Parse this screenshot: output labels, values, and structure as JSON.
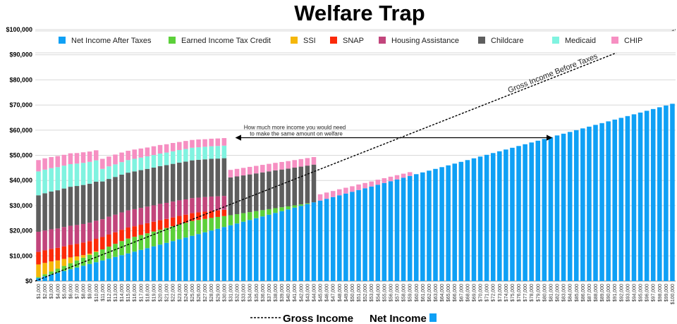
{
  "chart_data": {
    "type": "bar",
    "stacked": true,
    "title": "Welfare Trap",
    "xlabel": "",
    "ylabel": "",
    "ylim": [
      0,
      100000
    ],
    "yticks": [
      "$0",
      "$10,000",
      "$20,000",
      "$30,000",
      "$40,000",
      "$50,000",
      "$60,000",
      "$70,000",
      "$80,000",
      "$90,000",
      "$100,000"
    ],
    "ytick_values": [
      0,
      10000,
      20000,
      30000,
      40000,
      50000,
      60000,
      70000,
      80000,
      90000,
      100000
    ],
    "grid": true,
    "legend_placement": "top",
    "x_start": 1000,
    "x_step": 1000,
    "x_count": 100,
    "series": [
      {
        "name": "Net Income After Taxes",
        "color": "#0fa0f5",
        "values": [
          1200,
          1900,
          2600,
          3300,
          4000,
          4700,
          5400,
          6100,
          6800,
          7500,
          8200,
          8900,
          9600,
          10300,
          11000,
          11700,
          12400,
          13100,
          13800,
          14500,
          15200,
          15900,
          16600,
          17300,
          18000,
          18700,
          19400,
          20100,
          20800,
          21500,
          22200,
          22900,
          23600,
          24300,
          25000,
          25700,
          26400,
          27100,
          27800,
          28500,
          29200,
          29900,
          30600,
          31300,
          32000,
          32700,
          33400,
          34100,
          34800,
          35500,
          36200,
          36900,
          37600,
          38300,
          39000,
          39700,
          40400,
          41100,
          41800,
          42500,
          43200,
          43900,
          44600,
          45300,
          46000,
          46700,
          47400,
          48100,
          48800,
          49500,
          50200,
          50900,
          51600,
          52300,
          53000,
          53700,
          54400,
          55100,
          55800,
          56500,
          57200,
          57900,
          58600,
          59300,
          60000,
          60700,
          61400,
          62100,
          62800,
          63500,
          64200,
          64900,
          65600,
          66300,
          67000,
          67700,
          68400,
          69100,
          69800,
          70500
        ]
      },
      {
        "name": "Earned Income Tax Credit",
        "color": "#5cd03a",
        "values": [
          400,
          800,
          1200,
          1600,
          2000,
          2400,
          2800,
          3200,
          3600,
          4000,
          4400,
          4800,
          5200,
          5600,
          5900,
          5900,
          5900,
          5900,
          5900,
          5900,
          5900,
          5900,
          5900,
          5900,
          5900,
          5600,
          5300,
          5000,
          4700,
          4350,
          4000,
          3700,
          3400,
          3100,
          2800,
          2500,
          2200,
          1900,
          1550,
          1200,
          900,
          600,
          300,
          0,
          0,
          0,
          0,
          0,
          0,
          0,
          0,
          0,
          0,
          0,
          0,
          0,
          0,
          0,
          0,
          0,
          0,
          0,
          0,
          0,
          0,
          0,
          0,
          0,
          0,
          0,
          0,
          0,
          0,
          0,
          0,
          0,
          0,
          0,
          0,
          0,
          0,
          0,
          0,
          0,
          0,
          0,
          0,
          0,
          0,
          0,
          0,
          0,
          0,
          0,
          0,
          0,
          0,
          0,
          0,
          0
        ]
      },
      {
        "name": "SSI",
        "color": "#f5b70a",
        "values": [
          5000,
          4500,
          4000,
          3300,
          2800,
          2300,
          1600,
          1000,
          500,
          300,
          0,
          0,
          0,
          0,
          0,
          0,
          0,
          0,
          0,
          0,
          0,
          0,
          0,
          0,
          0,
          0,
          0,
          0,
          0,
          0,
          0,
          0,
          0,
          0,
          0,
          0,
          0,
          0,
          0,
          0,
          0,
          0,
          0,
          0,
          0,
          0,
          0,
          0,
          0,
          0,
          0,
          0,
          0,
          0,
          0,
          0,
          0,
          0,
          0,
          0,
          0,
          0,
          0,
          0,
          0,
          0,
          0,
          0,
          0,
          0,
          0,
          0,
          0,
          0,
          0,
          0,
          0,
          0,
          0,
          0,
          0,
          0,
          0,
          0,
          0,
          0,
          0,
          0,
          0,
          0,
          0,
          0,
          0,
          0,
          0,
          0,
          0,
          0,
          0,
          0
        ]
      },
      {
        "name": "SNAP",
        "color": "#fb2a0a",
        "values": [
          5000,
          5000,
          5000,
          5000,
          5000,
          5000,
          5000,
          5000,
          5000,
          5000,
          4900,
          4800,
          4600,
          4500,
          4400,
          4200,
          4100,
          4000,
          3900,
          3800,
          3600,
          3500,
          3400,
          3200,
          3100,
          3000,
          2900,
          2800,
          2600,
          2500,
          0,
          0,
          0,
          0,
          0,
          0,
          0,
          0,
          0,
          0,
          0,
          0,
          0,
          0,
          0,
          0,
          0,
          0,
          0,
          0,
          0,
          0,
          0,
          0,
          0,
          0,
          0,
          0,
          0,
          0,
          0,
          0,
          0,
          0,
          0,
          0,
          0,
          0,
          0,
          0,
          0,
          0,
          0,
          0,
          0,
          0,
          0,
          0,
          0,
          0,
          0,
          0,
          0,
          0,
          0,
          0,
          0,
          0,
          0,
          0,
          0,
          0,
          0,
          0,
          0,
          0,
          0,
          0,
          0,
          0
        ]
      },
      {
        "name": "Housing Assistance",
        "color": "#c2457c",
        "values": [
          8000,
          7900,
          7800,
          7700,
          7700,
          7600,
          7500,
          7400,
          7300,
          7200,
          7100,
          7100,
          7000,
          6900,
          6800,
          6800,
          6700,
          6600,
          6500,
          6500,
          6400,
          6300,
          6200,
          6100,
          6000,
          5900,
          5800,
          5700,
          5600,
          5500,
          0,
          0,
          0,
          0,
          0,
          0,
          0,
          0,
          0,
          0,
          0,
          0,
          0,
          0,
          0,
          0,
          0,
          0,
          0,
          0,
          0,
          0,
          0,
          0,
          0,
          0,
          0,
          0,
          0,
          0,
          0,
          0,
          0,
          0,
          0,
          0,
          0,
          0,
          0,
          0,
          0,
          0,
          0,
          0,
          0,
          0,
          0,
          0,
          0,
          0,
          0,
          0,
          0,
          0,
          0,
          0,
          0,
          0,
          0,
          0,
          0,
          0,
          0,
          0,
          0,
          0,
          0,
          0,
          0,
          0
        ]
      },
      {
        "name": "Childcare",
        "color": "#5e5e5e",
        "values": [
          14500,
          14800,
          15000,
          15200,
          15300,
          15500,
          15500,
          15500,
          15500,
          15500,
          15000,
          15000,
          15000,
          15000,
          15000,
          15000,
          15000,
          15000,
          15000,
          15000,
          15000,
          15000,
          15000,
          15000,
          15000,
          15000,
          15000,
          15000,
          15000,
          15000,
          15000,
          15000,
          15000,
          15000,
          15000,
          15000,
          15000,
          15000,
          15000,
          15000,
          15000,
          15000,
          15000,
          15000,
          0,
          0,
          0,
          0,
          0,
          0,
          0,
          0,
          0,
          0,
          0,
          0,
          0,
          0,
          0,
          0,
          0,
          0,
          0,
          0,
          0,
          0,
          0,
          0,
          0,
          0,
          0,
          0,
          0,
          0,
          0,
          0,
          0,
          0,
          0,
          0,
          0,
          0,
          0,
          0,
          0,
          0,
          0,
          0,
          0,
          0,
          0,
          0,
          0,
          0,
          0,
          0,
          0,
          0,
          0,
          0
        ]
      },
      {
        "name": "Medicaid",
        "color": "#80f3e0",
        "values": [
          9500,
          9400,
          9300,
          9200,
          9100,
          9000,
          8900,
          8800,
          8700,
          8500,
          5000,
          5000,
          5000,
          5000,
          5000,
          5000,
          5000,
          5000,
          5000,
          5000,
          5000,
          5000,
          5000,
          5000,
          5000,
          5000,
          5000,
          5000,
          5000,
          5000,
          0,
          0,
          0,
          0,
          0,
          0,
          0,
          0,
          0,
          0,
          0,
          0,
          0,
          0,
          0,
          0,
          0,
          0,
          0,
          0,
          0,
          0,
          0,
          0,
          0,
          0,
          0,
          0,
          0,
          0,
          0,
          0,
          0,
          0,
          0,
          0,
          0,
          0,
          0,
          0,
          0,
          0,
          0,
          0,
          0,
          0,
          0,
          0,
          0,
          0,
          0,
          0,
          0,
          0,
          0,
          0,
          0,
          0,
          0,
          0,
          0,
          0,
          0,
          0,
          0,
          0,
          0,
          0,
          0,
          0
        ]
      },
      {
        "name": "CHIP",
        "color": "#f68fc2",
        "values": [
          4500,
          4500,
          4400,
          4400,
          4300,
          4300,
          4200,
          4200,
          4100,
          4000,
          4000,
          3900,
          3900,
          3800,
          3700,
          3700,
          3600,
          3500,
          3500,
          3400,
          3300,
          3300,
          3200,
          3200,
          3100,
          3100,
          3000,
          3000,
          3000,
          3000,
          3000,
          3000,
          3000,
          3000,
          3000,
          3000,
          3000,
          3000,
          3000,
          3000,
          3000,
          3000,
          3000,
          3000,
          2500,
          2500,
          2400,
          2400,
          2300,
          2200,
          2200,
          2100,
          2000,
          2000,
          1900,
          1800,
          1700,
          1600,
          1500,
          0,
          0,
          0,
          0,
          0,
          0,
          0,
          0,
          0,
          0,
          0,
          0,
          0,
          0,
          0,
          0,
          0,
          0,
          0,
          0,
          0,
          0,
          0,
          0,
          0,
          0,
          0,
          0,
          0,
          0,
          0,
          0,
          0,
          0,
          0,
          0,
          0,
          0,
          0,
          0,
          0
        ]
      }
    ],
    "line": {
      "name": "Gross Income Before Taxes",
      "style": "dashed",
      "color": "#000000",
      "from": [
        0,
        0
      ],
      "to": [
        100000,
        100000
      ]
    },
    "annotation": {
      "text_line1": "How much more income you would need",
      "text_line2": "to make the same amount on welfare",
      "arrow_y": 57000,
      "arrow_from": 31000,
      "arrow_to": 81000
    },
    "bottom_legend": {
      "gross": "Gross Income",
      "net": "Net Income"
    }
  }
}
